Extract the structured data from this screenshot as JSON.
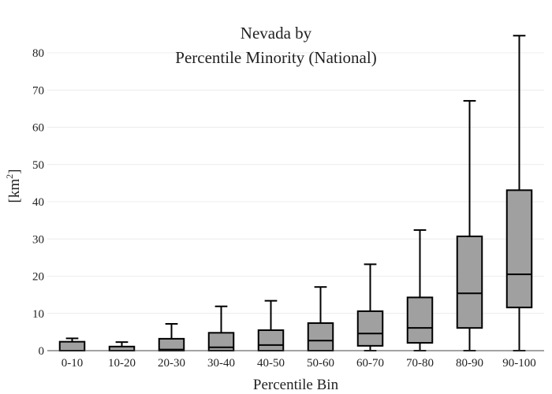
{
  "chart_data": {
    "type": "box",
    "title_line1": "Nevada  by",
    "title_line2": "Percentile Minority (National)",
    "xlabel": "Percentile Bin",
    "ylabel": "[km",
    "ylabel_superscript": "2",
    "ylabel_suffix": "]",
    "ylim": [
      0,
      85
    ],
    "yticks": [
      0,
      10,
      20,
      30,
      40,
      50,
      60,
      70,
      80
    ],
    "grid": true,
    "box_color": "#a0a0a0",
    "line_color": "#000000",
    "categories": [
      "0-10",
      "10-20",
      "20-30",
      "30-40",
      "40-50",
      "50-60",
      "60-70",
      "70-80",
      "80-90",
      "90-100"
    ],
    "boxes": [
      {
        "category": "0-10",
        "min": 0,
        "q1": 0,
        "median": 0,
        "q3": 2.4,
        "max": 3.3
      },
      {
        "category": "10-20",
        "min": 0,
        "q1": 0,
        "median": 0,
        "q3": 1.1,
        "max": 2.3
      },
      {
        "category": "20-30",
        "min": 0,
        "q1": 0,
        "median": 0.3,
        "q3": 3.2,
        "max": 7.2
      },
      {
        "category": "30-40",
        "min": 0,
        "q1": 0,
        "median": 0.9,
        "q3": 4.8,
        "max": 11.9
      },
      {
        "category": "40-50",
        "min": 0,
        "q1": 0,
        "median": 1.5,
        "q3": 5.5,
        "max": 13.4
      },
      {
        "category": "50-60",
        "min": 0,
        "q1": 0,
        "median": 2.7,
        "q3": 7.4,
        "max": 17.1
      },
      {
        "category": "60-70",
        "min": 0,
        "q1": 1.3,
        "median": 4.6,
        "q3": 10.6,
        "max": 23.2
      },
      {
        "category": "70-80",
        "min": 0,
        "q1": 2.1,
        "median": 6.1,
        "q3": 14.3,
        "max": 32.4
      },
      {
        "category": "80-90",
        "min": 0,
        "q1": 6.1,
        "median": 15.4,
        "q3": 30.7,
        "max": 67.1
      },
      {
        "category": "90-100",
        "min": 0,
        "q1": 11.6,
        "median": 20.5,
        "q3": 43.1,
        "max": 84.6
      }
    ]
  }
}
